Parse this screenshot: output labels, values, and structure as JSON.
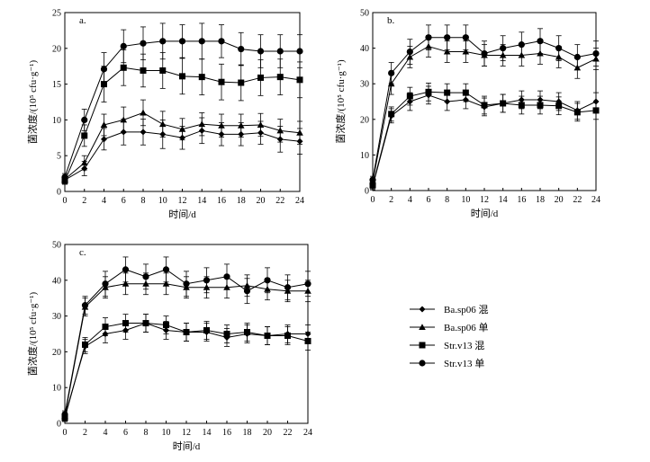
{
  "chart_data": [
    {
      "panel": "a.",
      "type": "line",
      "xlabel": "时间/d",
      "ylabel": "菌浓度/(10⁵ cfu·g⁻¹)",
      "xlim": [
        0,
        24
      ],
      "ylim": [
        0,
        25
      ],
      "xticks": [
        0,
        2,
        4,
        6,
        8,
        10,
        12,
        14,
        16,
        18,
        20,
        22,
        24
      ],
      "yticks": [
        0,
        5,
        10,
        15,
        20,
        25
      ],
      "x": [
        0,
        2,
        4,
        6,
        8,
        10,
        12,
        14,
        16,
        18,
        20,
        22,
        24
      ],
      "series": [
        {
          "name": "Ba.sp06 混",
          "marker": "diamond",
          "values": [
            1.6,
            3.2,
            7.3,
            8.3,
            8.3,
            8.0,
            7.5,
            8.5,
            8.0,
            8.0,
            8.2,
            7.3,
            7.0
          ],
          "errors": [
            0.5,
            1.0,
            1.5,
            1.8,
            1.8,
            2.0,
            1.6,
            1.8,
            1.6,
            1.6,
            1.6,
            1.8,
            1.8
          ]
        },
        {
          "name": "Ba.sp06 单",
          "marker": "triangle",
          "values": [
            1.7,
            4.0,
            9.3,
            10.0,
            11.0,
            9.4,
            8.7,
            9.4,
            9.2,
            9.2,
            9.3,
            8.5,
            8.2
          ],
          "errors": [
            0.5,
            1.0,
            1.5,
            1.8,
            1.8,
            1.8,
            1.5,
            1.6,
            1.6,
            1.6,
            1.6,
            1.6,
            1.6
          ]
        },
        {
          "name": "Str.v13 混",
          "marker": "square",
          "values": [
            1.5,
            7.8,
            15.0,
            17.3,
            16.9,
            16.9,
            16.1,
            16.0,
            15.3,
            15.2,
            15.9,
            16.0,
            15.6
          ],
          "errors": [
            0.5,
            1.5,
            2.5,
            2.5,
            2.3,
            2.5,
            2.5,
            2.5,
            2.5,
            2.5,
            2.5,
            2.5,
            2.5
          ]
        },
        {
          "name": "Str.v13 单",
          "marker": "circle",
          "values": [
            2.0,
            10.0,
            17.1,
            20.3,
            20.7,
            21.0,
            21.0,
            21.0,
            21.0,
            19.9,
            19.6,
            19.6,
            19.6
          ],
          "errors": [
            0.5,
            1.5,
            2.3,
            2.3,
            2.3,
            2.5,
            2.3,
            2.5,
            2.3,
            2.3,
            2.3,
            2.3,
            2.3
          ]
        }
      ]
    },
    {
      "panel": "b.",
      "type": "line",
      "xlabel": "时间/d",
      "ylabel": "菌浓度/(10⁵ cfu·g⁻¹)",
      "xlim": [
        0,
        24
      ],
      "ylim": [
        0,
        50
      ],
      "xticks": [
        0,
        2,
        4,
        6,
        8,
        10,
        12,
        14,
        16,
        18,
        20,
        22,
        24
      ],
      "yticks": [
        0,
        10,
        20,
        30,
        40,
        50
      ],
      "x": [
        0,
        2,
        4,
        6,
        8,
        10,
        12,
        14,
        16,
        18,
        20,
        22,
        24
      ],
      "series": [
        {
          "name": "Ba.sp06 混",
          "marker": "diamond",
          "values": [
            1.2,
            21.0,
            25.0,
            26.8,
            25.0,
            25.5,
            23.5,
            24.5,
            25.5,
            25.5,
            25.0,
            22.5,
            25.0
          ],
          "errors": [
            1.0,
            2.0,
            2.5,
            2.5,
            2.5,
            2.5,
            2.5,
            2.5,
            2.5,
            2.5,
            2.5,
            2.5,
            2.5
          ]
        },
        {
          "name": "Ba.sp06 单",
          "marker": "triangle",
          "values": [
            2.5,
            30.0,
            37.5,
            40.5,
            39.0,
            39.0,
            38.0,
            38.0,
            38.0,
            38.5,
            37.5,
            34.5,
            37.0
          ],
          "errors": [
            1.0,
            3.0,
            3.0,
            3.0,
            3.0,
            3.0,
            3.0,
            3.0,
            3.0,
            3.0,
            3.0,
            3.0,
            3.0
          ]
        },
        {
          "name": "Str.v13 混",
          "marker": "square",
          "values": [
            1.5,
            21.5,
            26.5,
            27.7,
            27.5,
            27.5,
            24.0,
            24.5,
            24.0,
            24.0,
            23.8,
            22.0,
            22.5
          ],
          "errors": [
            1.0,
            2.0,
            2.5,
            2.5,
            2.5,
            2.5,
            2.5,
            2.5,
            2.5,
            2.5,
            2.5,
            2.5,
            2.5
          ]
        },
        {
          "name": "Str.v13 单",
          "marker": "circle",
          "values": [
            3.0,
            33.0,
            39.0,
            43.0,
            43.0,
            43.0,
            38.5,
            40.0,
            41.0,
            42.0,
            40.0,
            37.5,
            38.5
          ],
          "errors": [
            1.0,
            3.0,
            3.5,
            3.5,
            3.5,
            3.5,
            3.5,
            3.5,
            3.5,
            3.5,
            3.5,
            3.5,
            3.5
          ]
        }
      ]
    },
    {
      "panel": "c.",
      "type": "line",
      "xlabel": "时间/d",
      "ylabel": "菌浓度/(10⁵ cfu·g⁻¹)",
      "xlim": [
        0,
        24
      ],
      "ylim": [
        0,
        50
      ],
      "xticks": [
        0,
        2,
        4,
        6,
        8,
        10,
        12,
        14,
        16,
        18,
        20,
        22,
        24
      ],
      "yticks": [
        0,
        10,
        20,
        30,
        40,
        50
      ],
      "x": [
        0,
        2,
        4,
        6,
        8,
        10,
        12,
        14,
        16,
        18,
        20,
        22,
        24
      ],
      "series": [
        {
          "name": "Ba.sp06 混",
          "marker": "diamond",
          "values": [
            2.0,
            21.5,
            25.0,
            26.0,
            28.0,
            26.0,
            25.5,
            25.5,
            24.0,
            25.0,
            24.5,
            25.0,
            25.0
          ],
          "errors": [
            1.0,
            2.0,
            2.5,
            2.5,
            2.5,
            2.5,
            2.5,
            2.5,
            2.5,
            2.5,
            2.5,
            2.5,
            2.5
          ]
        },
        {
          "name": "Ba.sp06 单",
          "marker": "triangle",
          "values": [
            2.0,
            32.5,
            38.0,
            39.0,
            39.0,
            39.0,
            38.0,
            38.0,
            38.0,
            38.5,
            37.5,
            37.0,
            37.0
          ],
          "errors": [
            1.0,
            2.5,
            3.0,
            3.0,
            3.0,
            3.0,
            3.0,
            3.0,
            3.0,
            3.0,
            3.0,
            3.0,
            3.0
          ]
        },
        {
          "name": "Str.v13 混",
          "marker": "square",
          "values": [
            1.5,
            22.0,
            27.0,
            28.0,
            28.0,
            27.5,
            25.5,
            26.0,
            25.0,
            25.5,
            24.5,
            24.5,
            23.0
          ],
          "errors": [
            1.0,
            2.0,
            2.5,
            2.5,
            2.5,
            2.5,
            2.5,
            2.5,
            2.5,
            2.5,
            2.5,
            2.5,
            2.5
          ]
        },
        {
          "name": "Str.v13 单",
          "marker": "circle",
          "values": [
            2.5,
            33.0,
            39.0,
            43.0,
            41.0,
            43.0,
            39.0,
            40.0,
            41.0,
            37.0,
            40.0,
            38.0,
            39.0
          ],
          "errors": [
            1.0,
            2.5,
            3.5,
            3.5,
            3.5,
            3.5,
            3.5,
            3.5,
            3.5,
            3.5,
            3.5,
            3.5,
            3.5
          ]
        }
      ]
    }
  ],
  "legend": {
    "items": [
      {
        "label": "Ba.sp06 混",
        "marker": "diamond"
      },
      {
        "label": "Ba.sp06 单",
        "marker": "triangle"
      },
      {
        "label": "Str.v13 混",
        "marker": "square"
      },
      {
        "label": "Str.v13 单",
        "marker": "circle"
      }
    ]
  },
  "colors": {
    "ink": "#000000",
    "background": "#ffffff"
  }
}
